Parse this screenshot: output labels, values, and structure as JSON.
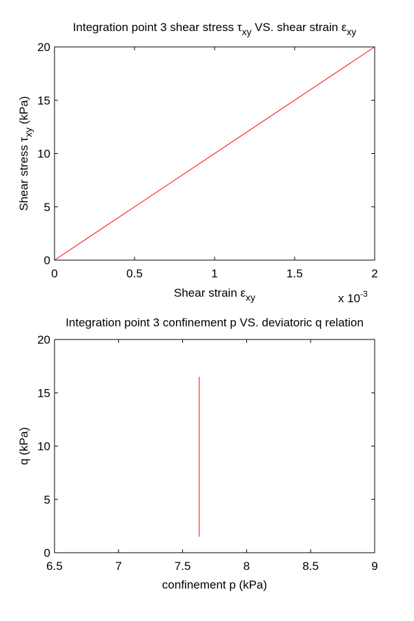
{
  "figure": {
    "background": "#ffffff"
  },
  "chart_data": [
    {
      "type": "line",
      "title": {
        "prefix": "Integration point 3 shear stress ",
        "sym1": "τ",
        "sub1": "xy",
        "mid": " VS. shear strain ",
        "sym2": "ε",
        "sub2": "xy"
      },
      "xlabel": {
        "text": "Shear strain ",
        "sym": "ε",
        "sub": "xy"
      },
      "ylabel": {
        "text": "Shear stress ",
        "sym": "τ",
        "sub": "xy",
        "suffix": " (kPa)"
      },
      "x_multiplier": {
        "base": "x 10",
        "exp": "-3"
      },
      "xlim": [
        0,
        2
      ],
      "ylim": [
        0,
        20
      ],
      "xticks": [
        0,
        0.5,
        1,
        1.5,
        2
      ],
      "xtick_labels": [
        "0",
        "0.5",
        "1",
        "1.5",
        "2"
      ],
      "yticks": [
        0,
        5,
        10,
        15,
        20
      ],
      "ytick_labels": [
        "0",
        "5",
        "10",
        "15",
        "20"
      ],
      "grid": false,
      "series": [
        {
          "color": "#ff0000",
          "x": [
            0,
            2
          ],
          "y": [
            0,
            20
          ]
        }
      ]
    },
    {
      "type": "line",
      "title": {
        "prefix": "Integration point 3 confinement p VS. deviatoric q relation"
      },
      "xlabel": {
        "text": "confinement p (kPa)"
      },
      "ylabel": {
        "text": "q (kPa)"
      },
      "xlim": [
        6.5,
        9
      ],
      "ylim": [
        0,
        20
      ],
      "xticks": [
        6.5,
        7,
        7.5,
        8,
        8.5,
        9
      ],
      "xtick_labels": [
        "6.5",
        "7",
        "7.5",
        "8",
        "8.5",
        "9"
      ],
      "yticks": [
        0,
        5,
        10,
        15,
        20
      ],
      "ytick_labels": [
        "0",
        "5",
        "10",
        "15",
        "20"
      ],
      "grid": false,
      "series": [
        {
          "color": "#ff0000",
          "x": [
            7.63,
            7.63
          ],
          "y": [
            1.5,
            16.5
          ]
        }
      ]
    }
  ]
}
